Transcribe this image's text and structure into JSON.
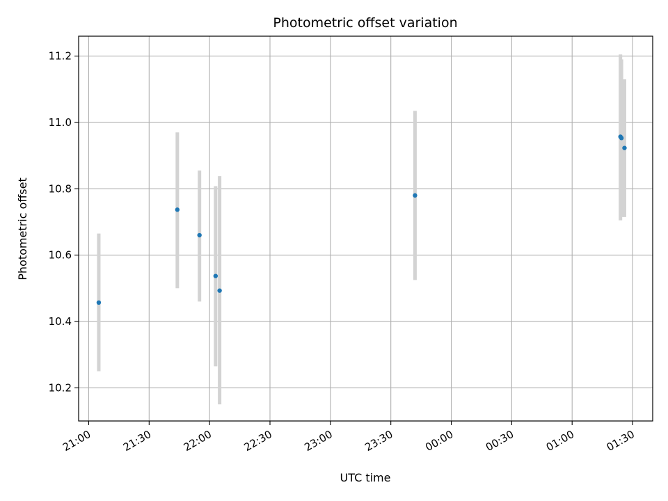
{
  "chart_data": {
    "type": "scatter",
    "title": "Photometric offset variation",
    "xlabel": "UTC time",
    "ylabel": "Photometric offset",
    "x_type": "time",
    "x_unit": "hours",
    "xlim": [
      "20:55",
      "01:40"
    ],
    "ylim": [
      10.1,
      11.26
    ],
    "grid": true,
    "errorbar_color": "#d3d3d3",
    "point_color": "#1f77b4",
    "x_ticks": [
      {
        "value": "21:00",
        "label": "21:00"
      },
      {
        "value": "21:30",
        "label": "21:30"
      },
      {
        "value": "22:00",
        "label": "22:00"
      },
      {
        "value": "22:30",
        "label": "22:30"
      },
      {
        "value": "23:00",
        "label": "23:00"
      },
      {
        "value": "23:30",
        "label": "23:30"
      },
      {
        "value": "00:00",
        "label": "00:00"
      },
      {
        "value": "00:30",
        "label": "00:30"
      },
      {
        "value": "01:00",
        "label": "01:00"
      },
      {
        "value": "01:30",
        "label": "01:30"
      }
    ],
    "y_ticks": [
      {
        "value": 10.2,
        "label": "10.2"
      },
      {
        "value": 10.4,
        "label": "10.4"
      },
      {
        "value": 10.6,
        "label": "10.6"
      },
      {
        "value": 10.8,
        "label": "10.8"
      },
      {
        "value": 11.0,
        "label": "11.0"
      },
      {
        "value": 11.2,
        "label": "11.2"
      }
    ],
    "points": [
      {
        "x": "21:05",
        "y": 10.457,
        "ylow": 10.25,
        "yhigh": 10.665
      },
      {
        "x": "21:44",
        "y": 10.737,
        "ylow": 10.5,
        "yhigh": 10.97
      },
      {
        "x": "21:55",
        "y": 10.66,
        "ylow": 10.46,
        "yhigh": 10.855
      },
      {
        "x": "22:03",
        "y": 10.537,
        "ylow": 10.265,
        "yhigh": 10.808
      },
      {
        "x": "22:05",
        "y": 10.493,
        "ylow": 10.15,
        "yhigh": 10.838
      },
      {
        "x": "23:42",
        "y": 10.78,
        "ylow": 10.525,
        "yhigh": 11.035
      },
      {
        "x": "01:24",
        "y": 10.957,
        "ylow": 10.705,
        "yhigh": 11.205
      },
      {
        "x": "01:24.5",
        "y": 10.953,
        "ylow": 10.715,
        "yhigh": 11.19
      },
      {
        "x": "01:26",
        "y": 10.923,
        "ylow": 10.715,
        "yhigh": 11.13
      }
    ]
  }
}
